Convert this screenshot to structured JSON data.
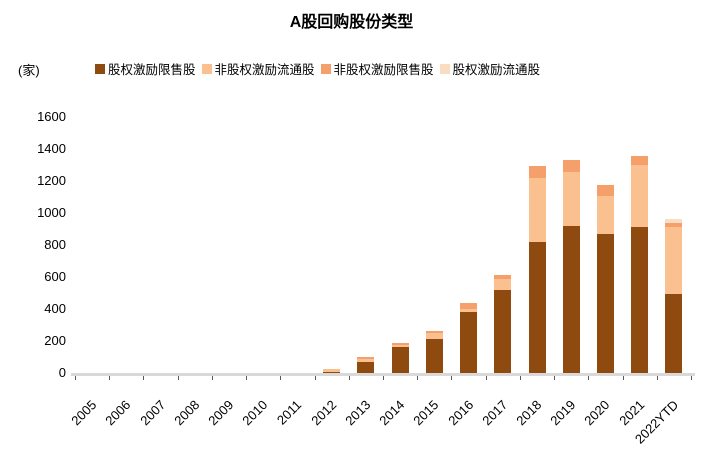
{
  "chart_data": {
    "type": "bar",
    "stacked": true,
    "title": "A股回购股份类型",
    "unit": "(家)",
    "legend_position": "top",
    "grid": false,
    "categories": [
      "2005",
      "2006",
      "2007",
      "2008",
      "2009",
      "2010",
      "2011",
      "2012",
      "2013",
      "2014",
      "2015",
      "2016",
      "2017",
      "2018",
      "2019",
      "2020",
      "2021",
      "2022YTD"
    ],
    "series": [
      {
        "name": "股权激励限售股",
        "color": "#8E4A0F",
        "values": [
          0,
          0,
          0,
          0,
          0,
          0,
          0,
          8,
          70,
          160,
          215,
          380,
          520,
          820,
          920,
          870,
          915,
          495
        ]
      },
      {
        "name": "非股权激励流通股",
        "color": "#FAC090",
        "values": [
          0,
          0,
          0,
          0,
          0,
          0,
          0,
          15,
          20,
          15,
          35,
          20,
          70,
          400,
          335,
          235,
          385,
          415
        ]
      },
      {
        "name": "非股权激励限售股",
        "color": "#F5A06A",
        "values": [
          0,
          0,
          0,
          0,
          0,
          0,
          0,
          0,
          8,
          10,
          15,
          35,
          25,
          72,
          78,
          73,
          58,
          25
        ]
      },
      {
        "name": "股权激励流通股",
        "color": "#FADCC3",
        "values": [
          0,
          0,
          0,
          0,
          0,
          0,
          0,
          0,
          0,
          0,
          0,
          0,
          0,
          0,
          0,
          0,
          0,
          25
        ]
      }
    ],
    "totals": [
      0,
      0,
      0,
      0,
      0,
      0,
      0,
      23,
      98,
      185,
      265,
      435,
      615,
      1292,
      1333,
      1178,
      1358,
      960
    ],
    "y_axis": {
      "min": 0,
      "max": 1600,
      "step": 200,
      "tick_labels": [
        "0",
        "200",
        "400",
        "600",
        "800",
        "1000",
        "1200",
        "1400",
        "1600"
      ]
    },
    "axis_line_color": "#D9D9D9",
    "tick_color": "#595959",
    "text_color": "#000000"
  }
}
